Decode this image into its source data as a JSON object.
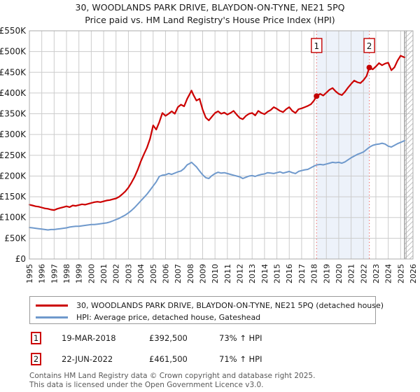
{
  "page": {
    "title": "30, WOODLANDS PARK DRIVE, BLAYDON-ON-TYNE, NE21 5PQ",
    "subtitle": "Price paid vs. HM Land Registry's House Price Index (HPI)"
  },
  "chart_data": {
    "type": "line",
    "title": "30, WOODLANDS PARK DRIVE, BLAYDON-ON-TYNE, NE21 5PQ",
    "subtitle": "Price paid vs. HM Land Registry's House Price Index (HPI)",
    "xlim": [
      1995,
      2026
    ],
    "ylim": [
      0,
      550000
    ],
    "grid": true,
    "grid_color": "#cccccc",
    "border_color": "#ababab",
    "x_tick_labels": [
      "1995",
      "1996",
      "1997",
      "1998",
      "1999",
      "2000",
      "2001",
      "2002",
      "2003",
      "2004",
      "2005",
      "2006",
      "2007",
      "2008",
      "2009",
      "2010",
      "2011",
      "2012",
      "2013",
      "2014",
      "2015",
      "2016",
      "2017",
      "2018",
      "2019",
      "2020",
      "2021",
      "2022",
      "2023",
      "2024",
      "2025",
      "2026"
    ],
    "y_ticks": [
      {
        "value": 0,
        "label": "£0"
      },
      {
        "value": 50000,
        "label": "£50K"
      },
      {
        "value": 100000,
        "label": "£100K"
      },
      {
        "value": 150000,
        "label": "£150K"
      },
      {
        "value": 200000,
        "label": "£200K"
      },
      {
        "value": 250000,
        "label": "£250K"
      },
      {
        "value": 300000,
        "label": "£300K"
      },
      {
        "value": 350000,
        "label": "£350K"
      },
      {
        "value": 400000,
        "label": "£400K"
      },
      {
        "value": 450000,
        "label": "£450K"
      },
      {
        "value": 500000,
        "label": "£500K"
      },
      {
        "value": 550000,
        "label": "£550K"
      }
    ],
    "band": {
      "from": 2018.21,
      "to": 2022.47,
      "color": "#edf2fa"
    },
    "hatch_from": 2025.32,
    "event_line_color": "#f08080",
    "marker_color": "#c40000",
    "sales": [
      {
        "label": "1",
        "x": 2018.21,
        "price": 392500
      },
      {
        "label": "2",
        "x": 2022.47,
        "price": 461500
      }
    ],
    "series": [
      {
        "name": "30, WOODLANDS PARK DRIVE, BLAYDON-ON-TYNE, NE21 5PQ (detached house)",
        "color": "#cc0000",
        "width": 2.2,
        "points": [
          [
            1995.0,
            131000
          ],
          [
            1995.25,
            129000
          ],
          [
            1995.5,
            127000
          ],
          [
            1995.75,
            126000
          ],
          [
            1996.0,
            124000
          ],
          [
            1996.25,
            122000
          ],
          [
            1996.5,
            121000
          ],
          [
            1996.75,
            119000
          ],
          [
            1997.0,
            118000
          ],
          [
            1997.25,
            121000
          ],
          [
            1997.5,
            123000
          ],
          [
            1997.75,
            125000
          ],
          [
            1998.0,
            127000
          ],
          [
            1998.25,
            125000
          ],
          [
            1998.5,
            129000
          ],
          [
            1998.75,
            128000
          ],
          [
            1999.0,
            130000
          ],
          [
            1999.25,
            132000
          ],
          [
            1999.5,
            131000
          ],
          [
            1999.75,
            133000
          ],
          [
            2000.0,
            135000
          ],
          [
            2000.25,
            137000
          ],
          [
            2000.5,
            138000
          ],
          [
            2000.75,
            137000
          ],
          [
            2001.0,
            139000
          ],
          [
            2001.25,
            141000
          ],
          [
            2001.5,
            142000
          ],
          [
            2001.75,
            144000
          ],
          [
            2002.0,
            146000
          ],
          [
            2002.25,
            150000
          ],
          [
            2002.5,
            156000
          ],
          [
            2002.75,
            163000
          ],
          [
            2003.0,
            172000
          ],
          [
            2003.25,
            184000
          ],
          [
            2003.5,
            198000
          ],
          [
            2003.75,
            215000
          ],
          [
            2004.0,
            235000
          ],
          [
            2004.25,
            252000
          ],
          [
            2004.5,
            268000
          ],
          [
            2004.75,
            290000
          ],
          [
            2005.0,
            322000
          ],
          [
            2005.25,
            312000
          ],
          [
            2005.5,
            330000
          ],
          [
            2005.75,
            352000
          ],
          [
            2006.0,
            345000
          ],
          [
            2006.25,
            350000
          ],
          [
            2006.5,
            356000
          ],
          [
            2006.75,
            350000
          ],
          [
            2007.0,
            366000
          ],
          [
            2007.25,
            372000
          ],
          [
            2007.5,
            368000
          ],
          [
            2007.75,
            386000
          ],
          [
            2008.0,
            400000
          ],
          [
            2008.1,
            406000
          ],
          [
            2008.25,
            396000
          ],
          [
            2008.5,
            382000
          ],
          [
            2008.75,
            386000
          ],
          [
            2009.0,
            360000
          ],
          [
            2009.25,
            341000
          ],
          [
            2009.5,
            334000
          ],
          [
            2009.75,
            343000
          ],
          [
            2010.0,
            352000
          ],
          [
            2010.25,
            356000
          ],
          [
            2010.5,
            350000
          ],
          [
            2010.75,
            353000
          ],
          [
            2011.0,
            348000
          ],
          [
            2011.25,
            352000
          ],
          [
            2011.5,
            357000
          ],
          [
            2011.75,
            348000
          ],
          [
            2012.0,
            340000
          ],
          [
            2012.25,
            337000
          ],
          [
            2012.5,
            345000
          ],
          [
            2012.75,
            350000
          ],
          [
            2013.0,
            352000
          ],
          [
            2013.25,
            346000
          ],
          [
            2013.5,
            357000
          ],
          [
            2013.75,
            352000
          ],
          [
            2014.0,
            349000
          ],
          [
            2014.25,
            355000
          ],
          [
            2014.5,
            359000
          ],
          [
            2014.75,
            366000
          ],
          [
            2015.0,
            362000
          ],
          [
            2015.25,
            357000
          ],
          [
            2015.5,
            354000
          ],
          [
            2015.75,
            361000
          ],
          [
            2016.0,
            366000
          ],
          [
            2016.25,
            357000
          ],
          [
            2016.5,
            352000
          ],
          [
            2016.75,
            361000
          ],
          [
            2017.0,
            363000
          ],
          [
            2017.25,
            366000
          ],
          [
            2017.5,
            369000
          ],
          [
            2017.75,
            373000
          ],
          [
            2018.0,
            382000
          ],
          [
            2018.21,
            392500
          ],
          [
            2018.5,
            398000
          ],
          [
            2018.75,
            394000
          ],
          [
            2019.0,
            401000
          ],
          [
            2019.25,
            408000
          ],
          [
            2019.5,
            412000
          ],
          [
            2019.75,
            404000
          ],
          [
            2020.0,
            398000
          ],
          [
            2020.25,
            395000
          ],
          [
            2020.5,
            403000
          ],
          [
            2020.75,
            413000
          ],
          [
            2021.0,
            422000
          ],
          [
            2021.25,
            430000
          ],
          [
            2021.5,
            426000
          ],
          [
            2021.75,
            424000
          ],
          [
            2022.0,
            431000
          ],
          [
            2022.25,
            441000
          ],
          [
            2022.47,
            461500
          ],
          [
            2022.75,
            457000
          ],
          [
            2023.0,
            464000
          ],
          [
            2023.25,
            472000
          ],
          [
            2023.5,
            467000
          ],
          [
            2023.75,
            471000
          ],
          [
            2024.0,
            473000
          ],
          [
            2024.25,
            455000
          ],
          [
            2024.5,
            462000
          ],
          [
            2024.75,
            478000
          ],
          [
            2025.0,
            490000
          ],
          [
            2025.3,
            486000
          ]
        ]
      },
      {
        "name": "HPI: Average price, detached house, Gateshead",
        "color": "#6f99cc",
        "width": 2,
        "points": [
          [
            1995.0,
            76000
          ],
          [
            1995.25,
            75000
          ],
          [
            1995.5,
            74000
          ],
          [
            1995.75,
            73000
          ],
          [
            1996.0,
            72000
          ],
          [
            1996.25,
            71000
          ],
          [
            1996.5,
            70000
          ],
          [
            1996.75,
            71000
          ],
          [
            1997.0,
            71000
          ],
          [
            1997.25,
            72000
          ],
          [
            1997.5,
            73000
          ],
          [
            1997.75,
            74000
          ],
          [
            1998.0,
            75000
          ],
          [
            1998.25,
            77000
          ],
          [
            1998.5,
            78000
          ],
          [
            1998.75,
            79000
          ],
          [
            1999.0,
            79000
          ],
          [
            1999.25,
            80000
          ],
          [
            1999.5,
            81000
          ],
          [
            1999.75,
            82000
          ],
          [
            2000.0,
            83000
          ],
          [
            2000.25,
            83000
          ],
          [
            2000.5,
            84000
          ],
          [
            2000.75,
            85000
          ],
          [
            2001.0,
            86000
          ],
          [
            2001.25,
            87000
          ],
          [
            2001.5,
            89000
          ],
          [
            2001.75,
            92000
          ],
          [
            2002.0,
            95000
          ],
          [
            2002.25,
            98000
          ],
          [
            2002.5,
            102000
          ],
          [
            2002.75,
            106000
          ],
          [
            2003.0,
            111000
          ],
          [
            2003.25,
            117000
          ],
          [
            2003.5,
            124000
          ],
          [
            2003.75,
            132000
          ],
          [
            2004.0,
            140000
          ],
          [
            2004.25,
            148000
          ],
          [
            2004.5,
            156000
          ],
          [
            2004.75,
            166000
          ],
          [
            2005.0,
            176000
          ],
          [
            2005.25,
            186000
          ],
          [
            2005.5,
            199000
          ],
          [
            2005.75,
            202000
          ],
          [
            2006.0,
            203000
          ],
          [
            2006.25,
            206000
          ],
          [
            2006.5,
            204000
          ],
          [
            2006.75,
            207000
          ],
          [
            2007.0,
            210000
          ],
          [
            2007.25,
            212000
          ],
          [
            2007.5,
            218000
          ],
          [
            2007.75,
            227000
          ],
          [
            2008.0,
            231000
          ],
          [
            2008.1,
            233000
          ],
          [
            2008.25,
            229000
          ],
          [
            2008.5,
            222000
          ],
          [
            2008.75,
            212000
          ],
          [
            2009.0,
            203000
          ],
          [
            2009.25,
            196000
          ],
          [
            2009.5,
            194000
          ],
          [
            2009.75,
            201000
          ],
          [
            2010.0,
            206000
          ],
          [
            2010.25,
            209000
          ],
          [
            2010.5,
            207000
          ],
          [
            2010.75,
            208000
          ],
          [
            2011.0,
            206000
          ],
          [
            2011.25,
            204000
          ],
          [
            2011.5,
            202000
          ],
          [
            2011.75,
            200000
          ],
          [
            2012.0,
            198000
          ],
          [
            2012.25,
            194000
          ],
          [
            2012.5,
            197000
          ],
          [
            2012.75,
            200000
          ],
          [
            2013.0,
            201000
          ],
          [
            2013.25,
            199000
          ],
          [
            2013.5,
            202000
          ],
          [
            2013.75,
            204000
          ],
          [
            2014.0,
            205000
          ],
          [
            2014.25,
            208000
          ],
          [
            2014.5,
            207000
          ],
          [
            2014.75,
            206000
          ],
          [
            2015.0,
            208000
          ],
          [
            2015.25,
            210000
          ],
          [
            2015.5,
            207000
          ],
          [
            2015.75,
            209000
          ],
          [
            2016.0,
            211000
          ],
          [
            2016.25,
            208000
          ],
          [
            2016.5,
            206000
          ],
          [
            2016.75,
            211000
          ],
          [
            2017.0,
            213000
          ],
          [
            2017.25,
            215000
          ],
          [
            2017.5,
            216000
          ],
          [
            2017.75,
            220000
          ],
          [
            2018.0,
            224000
          ],
          [
            2018.25,
            227000
          ],
          [
            2018.5,
            228000
          ],
          [
            2018.75,
            227000
          ],
          [
            2019.0,
            229000
          ],
          [
            2019.25,
            231000
          ],
          [
            2019.5,
            233000
          ],
          [
            2019.75,
            232000
          ],
          [
            2020.0,
            233000
          ],
          [
            2020.25,
            231000
          ],
          [
            2020.5,
            234000
          ],
          [
            2020.75,
            239000
          ],
          [
            2021.0,
            244000
          ],
          [
            2021.25,
            248000
          ],
          [
            2021.5,
            252000
          ],
          [
            2021.75,
            255000
          ],
          [
            2022.0,
            258000
          ],
          [
            2022.25,
            264000
          ],
          [
            2022.5,
            270000
          ],
          [
            2022.75,
            274000
          ],
          [
            2023.0,
            276000
          ],
          [
            2023.25,
            277000
          ],
          [
            2023.5,
            279000
          ],
          [
            2023.75,
            277000
          ],
          [
            2024.0,
            272000
          ],
          [
            2024.25,
            270000
          ],
          [
            2024.5,
            274000
          ],
          [
            2024.75,
            278000
          ],
          [
            2025.0,
            281000
          ],
          [
            2025.3,
            285000
          ]
        ]
      }
    ]
  },
  "legend": {
    "items": [
      {
        "label": "30, WOODLANDS PARK DRIVE, BLAYDON-ON-TYNE, NE21 5PQ (detached house)",
        "color": "#cc0000"
      },
      {
        "label": "HPI: Average price, detached house, Gateshead",
        "color": "#6f99cc"
      }
    ]
  },
  "events": [
    {
      "num": "1",
      "date": "19-MAR-2018",
      "price": "£392,500",
      "hpi": "73% ↑ HPI"
    },
    {
      "num": "2",
      "date": "22-JUN-2022",
      "price": "£461,500",
      "hpi": "71% ↑ HPI"
    }
  ],
  "footer": {
    "line1": "Contains HM Land Registry data © Crown copyright and database right 2025.",
    "line2": "This data is licensed under the Open Government Licence v3.0."
  }
}
